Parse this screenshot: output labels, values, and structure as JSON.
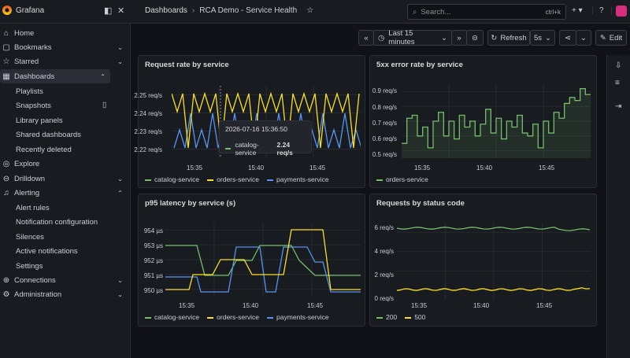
{
  "app": {
    "title": "Grafana"
  },
  "breadcrumb": {
    "root": "Dashboards",
    "current": "RCA Demo - Service Health"
  },
  "search": {
    "placeholder": "Search...",
    "shortcut": "ctrl+k"
  },
  "sidebar": {
    "items": [
      {
        "label": "Home"
      },
      {
        "label": "Bookmarks"
      },
      {
        "label": "Starred"
      },
      {
        "label": "Dashboards"
      },
      {
        "label": "Playlists"
      },
      {
        "label": "Snapshots"
      },
      {
        "label": "Library panels"
      },
      {
        "label": "Shared dashboards"
      },
      {
        "label": "Recently deleted"
      },
      {
        "label": "Explore"
      },
      {
        "label": "Drilldown"
      },
      {
        "label": "Alerting"
      },
      {
        "label": "Alert rules"
      },
      {
        "label": "Notification configuration"
      },
      {
        "label": "Silences"
      },
      {
        "label": "Active notifications"
      },
      {
        "label": "Settings"
      },
      {
        "label": "Connections"
      },
      {
        "label": "Administration"
      }
    ]
  },
  "toolbar": {
    "time_range": "Last 15 minutes",
    "refresh": "Refresh",
    "interval": "5s",
    "edit": "Edit"
  },
  "panels": {
    "p1": {
      "title": "Request rate by service",
      "yticks": [
        "2.25 req/s",
        "2.24 req/s",
        "2.23 req/s",
        "2.22 req/s"
      ],
      "xticks": [
        "15:35",
        "15:40",
        "15:45"
      ],
      "legend": [
        "catalog-service",
        "orders-service",
        "payments-service"
      ]
    },
    "p2": {
      "title": "5xx error rate by service",
      "yticks": [
        "0.9 req/s",
        "0.8 req/s",
        "0.7 req/s",
        "0.6 req/s",
        "0.5 req/s"
      ],
      "xticks": [
        "15:35",
        "15:40",
        "15:45"
      ],
      "legend": [
        "orders-service"
      ]
    },
    "p3": {
      "title": "p95 latency by service (s)",
      "yticks": [
        "954 µs",
        "953 µs",
        "952 µs",
        "951 µs",
        "950 µs"
      ],
      "xticks": [
        "15:35",
        "15:40",
        "15:45"
      ],
      "legend": [
        "catalog-service",
        "orders-service",
        "payments-service"
      ]
    },
    "p4": {
      "title": "Requests by status code",
      "yticks": [
        "6 req/s",
        "4 req/s",
        "2 req/s",
        "0 req/s"
      ],
      "xticks": [
        "15:35",
        "15:40",
        "15:45"
      ],
      "legend": [
        "200",
        "500"
      ]
    }
  },
  "tooltip": {
    "time": "2026-07-16 15:36:50",
    "series": "catalog-service",
    "value": "2.24 req/s"
  },
  "colors": {
    "green": "#73bf69",
    "yellow": "#fade2a",
    "blue": "#5794f2",
    "bg": "#111217",
    "panel": "#181b1f"
  }
}
